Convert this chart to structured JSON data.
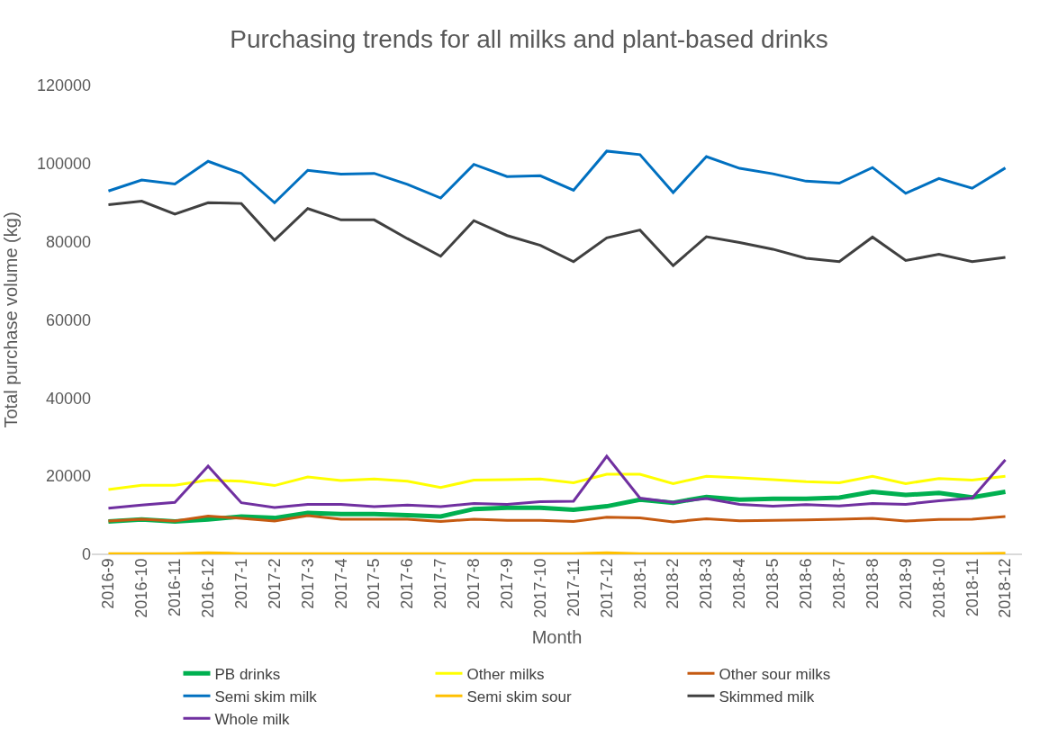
{
  "chart_data": {
    "type": "line",
    "title": "Purchasing trends for all milks and plant-based drinks",
    "xlabel": "Month",
    "ylabel": "Total purchase volume (kg)",
    "categories": [
      "2016-9",
      "2016-10",
      "2016-11",
      "2016-12",
      "2017-1",
      "2017-2",
      "2017-3",
      "2017-4",
      "2017-5",
      "2017-6",
      "2017-7",
      "2017-8",
      "2017-9",
      "2017-10",
      "2017-11",
      "2017-12",
      "2018-1",
      "2018-2",
      "2018-3",
      "2018-4",
      "2018-5",
      "2018-6",
      "2018-7",
      "2018-8",
      "2018-9",
      "2018-10",
      "2018-11",
      "2018-12"
    ],
    "ylim": [
      0,
      120000
    ],
    "yticks": [
      0,
      20000,
      40000,
      60000,
      80000,
      100000,
      120000
    ],
    "grid": false,
    "legend": "bottom",
    "marker": "none",
    "line_style": "solid",
    "series": [
      {
        "name": "PB drinks",
        "color": "#00b050",
        "values": [
          8400,
          8900,
          8400,
          8900,
          9700,
          9300,
          10600,
          10300,
          10300,
          10000,
          9700,
          11600,
          11900,
          11900,
          11400,
          12300,
          14000,
          13200,
          14700,
          14000,
          14200,
          14200,
          14500,
          16000,
          15200,
          15700,
          14600,
          16000
        ]
      },
      {
        "name": "Other milks",
        "color": "#ffff00",
        "values": [
          16600,
          17700,
          17700,
          19000,
          18700,
          17600,
          19800,
          18900,
          19300,
          18700,
          17100,
          19000,
          19100,
          19300,
          18300,
          20500,
          20500,
          18100,
          20000,
          19600,
          19100,
          18600,
          18300,
          20000,
          18100,
          19400,
          19000,
          20000
        ]
      },
      {
        "name": "Other sour milks",
        "color": "#c55a11",
        "values": [
          8500,
          9000,
          8500,
          9800,
          9200,
          8500,
          9900,
          9000,
          9000,
          9000,
          8400,
          9000,
          8700,
          8700,
          8400,
          9500,
          9300,
          8300,
          9100,
          8600,
          8700,
          8800,
          9000,
          9200,
          8500,
          8900,
          9000,
          9700
        ]
      },
      {
        "name": "Semi skim milk",
        "color": "#0070c0",
        "values": [
          93000,
          95800,
          94800,
          100600,
          97500,
          90000,
          98300,
          97300,
          97500,
          94700,
          91200,
          99800,
          96700,
          96900,
          93200,
          103200,
          102300,
          92600,
          101800,
          98800,
          97400,
          95500,
          95000,
          99000,
          92400,
          96200,
          93700,
          98900
        ]
      },
      {
        "name": "Semi skim sour",
        "color": "#ffc000",
        "values": [
          200,
          200,
          200,
          400,
          200,
          200,
          200,
          200,
          200,
          200,
          200,
          200,
          200,
          200,
          200,
          400,
          200,
          200,
          200,
          200,
          200,
          200,
          200,
          200,
          200,
          200,
          200,
          300
        ]
      },
      {
        "name": "Skimmed milk",
        "color": "#404040",
        "values": [
          89500,
          90400,
          87100,
          90000,
          89800,
          80400,
          88500,
          85600,
          85600,
          80800,
          76300,
          85400,
          81600,
          79100,
          74900,
          81000,
          83000,
          73900,
          81300,
          79800,
          78100,
          75800,
          74900,
          81200,
          75200,
          76800,
          74900,
          76000
        ]
      },
      {
        "name": "Whole milk",
        "color": "#7030a0",
        "values": [
          11800,
          12600,
          13300,
          22600,
          13200,
          12000,
          12800,
          12800,
          12200,
          12600,
          12200,
          13000,
          12800,
          13500,
          13600,
          25100,
          14400,
          13300,
          14300,
          12800,
          12300,
          12700,
          12400,
          13000,
          12800,
          13700,
          14400,
          24200
        ]
      }
    ]
  }
}
